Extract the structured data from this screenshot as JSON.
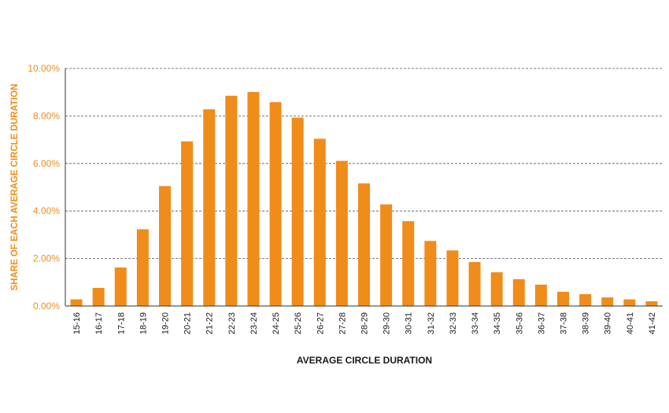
{
  "chart_data": {
    "type": "bar",
    "title": "",
    "xlabel": "AVERAGE CIRCLE DURATION",
    "ylabel": "SHARE OF EACH AVERAGE CIRCLE DURATION",
    "ylim": [
      0,
      10
    ],
    "yticks": [
      "0.00%",
      "2.00%",
      "4.00%",
      "6.00%",
      "8.00%",
      "10.00%"
    ],
    "grid": "horizontal dashed",
    "bar_color": "#f08c1a",
    "categories": [
      "15-16",
      "16-17",
      "17-18",
      "18-19",
      "19-20",
      "20-21",
      "21-22",
      "22-23",
      "23-24",
      "24-25",
      "25-26",
      "26-27",
      "27-28",
      "28-29",
      "29-30",
      "30-31",
      "31-32",
      "32-33",
      "33-34",
      "34-35",
      "35-36",
      "36-37",
      "37-38",
      "38-39",
      "39-40",
      "40-41",
      "41-42"
    ],
    "values": [
      0.28,
      0.76,
      1.62,
      3.23,
      5.05,
      6.93,
      8.28,
      8.85,
      9.01,
      8.58,
      7.93,
      7.04,
      6.11,
      5.16,
      4.28,
      3.57,
      2.74,
      2.34,
      1.85,
      1.42,
      1.13,
      0.9,
      0.6,
      0.5,
      0.36,
      0.28,
      0.2
    ]
  }
}
